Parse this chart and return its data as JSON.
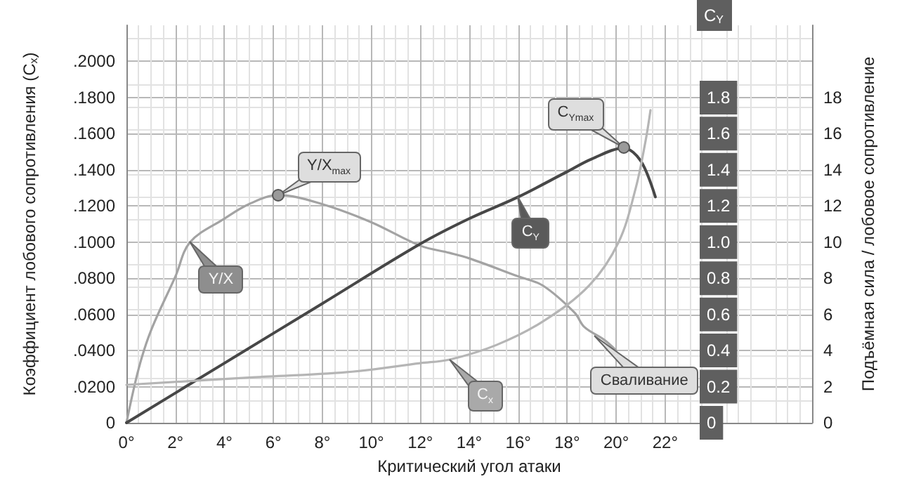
{
  "chart_data": {
    "type": "line",
    "xlabel": "Критический угол атаки",
    "ylabel": "Коэффициент лобового сопротивления (C$_{x}$)",
    "y2label": "C$_{Y}$",
    "y3label": "Подъёмная сила / лобовое сопротивление",
    "xlim": [
      0,
      28
    ],
    "xticks": [
      {
        "value": 0,
        "label": "0°"
      },
      {
        "value": 2,
        "label": "2°"
      },
      {
        "value": 4,
        "label": "4°"
      },
      {
        "value": 6,
        "label": "6°"
      },
      {
        "value": 8,
        "label": "8°"
      },
      {
        "value": 10,
        "label": "10°"
      },
      {
        "value": 12,
        "label": "12°"
      },
      {
        "value": 14,
        "label": "14°"
      },
      {
        "value": 16,
        "label": "16°"
      },
      {
        "value": 18,
        "label": "18°"
      },
      {
        "value": 20,
        "label": "20°"
      },
      {
        "value": 22,
        "label": "22°"
      }
    ],
    "ylim": [
      0,
      0.22
    ],
    "yticks": [
      0,
      {
        "value": 0.02,
        "label": ".0200"
      },
      {
        "value": 0.04,
        "label": ".0400"
      },
      {
        "value": 0.06,
        "label": ".0600"
      },
      {
        "value": 0.08,
        "label": ".0800"
      },
      {
        "value": 0.1,
        "label": ".1000"
      },
      {
        "value": 0.12,
        "label": ".1200"
      },
      {
        "value": 0.14,
        "label": ".1400"
      },
      {
        "value": 0.16,
        "label": ".1600"
      },
      {
        "value": 0.18,
        "label": ".1800"
      },
      {
        "value": 0.2,
        "label": ".2000"
      }
    ],
    "y2lim": [
      0,
      2.2
    ],
    "y2ticks": [
      0,
      0.2,
      0.4,
      0.6,
      0.8,
      {
        "value": 1,
        "label": "1.0"
      },
      1.2,
      1.4,
      1.6,
      1.8
    ],
    "y3lim": [
      0,
      22
    ],
    "y3ticks": [
      0,
      2,
      4,
      6,
      8,
      10,
      12,
      14,
      16,
      18
    ],
    "grid": true,
    "legend": false,
    "marker": "none",
    "line_style": "solid",
    "series": [
      {
        "name": "Y/X",
        "color": "#a3a3a3",
        "axis": "y3",
        "x": [
          0,
          0.5,
          1,
          2,
          2.6,
          4,
          5,
          6.2,
          8,
          10,
          12,
          13.2,
          14,
          16,
          17,
          18.3,
          18.7,
          19.5,
          20
        ],
        "values": [
          0,
          3,
          5.1,
          8.1,
          10,
          11.3,
          12.1,
          12.6,
          12.1,
          11.1,
          9.8,
          9.4,
          9.1,
          8.1,
          7.6,
          6.1,
          5.3,
          4.6,
          4
        ]
      },
      {
        "name": "C$_{Y}$",
        "color": "#474747",
        "axis": "y2",
        "x": [
          0,
          4,
          8,
          12,
          14,
          16,
          18,
          19,
          20.3,
          21,
          21.6
        ],
        "values": [
          0,
          0.33,
          0.66,
          0.99,
          1.13,
          1.25,
          1.39,
          1.46,
          1.52,
          1.45,
          1.25
        ]
      },
      {
        "name": "C$_{x}$",
        "color": "#b5b5b5",
        "x": [
          0,
          5,
          9,
          12,
          13.2,
          15.1,
          17,
          18.9,
          20.1,
          20.8,
          21.2,
          21.4
        ],
        "values": [
          0.021,
          0.025,
          0.028,
          0.033,
          0.035,
          0.043,
          0.056,
          0.076,
          0.1,
          0.13,
          0.156,
          0.173
        ]
      }
    ],
    "annotations": [
      {
        "text": "Y/X$_{max}$",
        "x": 6.2,
        "y": 0.126
      },
      {
        "text": "C$_{Ymax}$",
        "x": 20.3,
        "y": 0.152
      },
      {
        "text": "Сваливание",
        "x": 19.1,
        "y": 0.048
      }
    ]
  }
}
